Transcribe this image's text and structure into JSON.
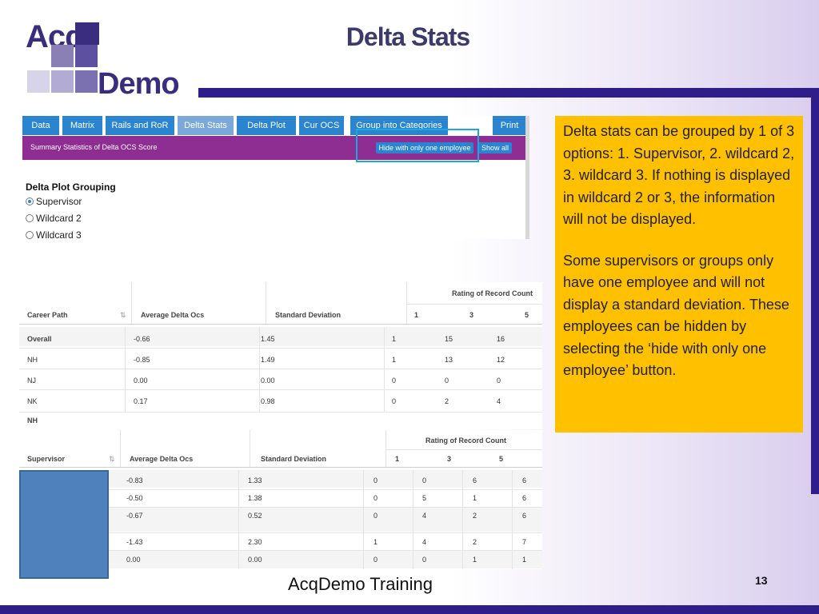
{
  "slide": {
    "title": "Delta Stats",
    "footer": "AcqDemo Training",
    "page_number": "13"
  },
  "logo": {
    "line1": "Acq",
    "line2": "Demo"
  },
  "app": {
    "tabs": [
      "Data",
      "Matrix",
      "Rails and RoR",
      "Delta Stats",
      "Delta Plot",
      "Cur OCS",
      "Group into Categories",
      "Print"
    ],
    "active_tab": "Delta Stats",
    "summary_label": "Summary Statistics of Delta OCS Score",
    "hide_button": "Hide with only one employee",
    "show_all_button": "Show all",
    "grouping_title": "Delta Plot Grouping",
    "grouping_options": [
      "Supervisor",
      "Wildcard 2",
      "Wildcard 3"
    ],
    "grouping_selected": "Supervisor"
  },
  "career_table": {
    "headers": [
      "Career Path",
      "Average Delta Ocs",
      "Standard Deviation"
    ],
    "ror_header": "Rating of Record Count",
    "ror_columns": [
      "1",
      "3",
      "5"
    ],
    "rows": [
      {
        "name": "Overall",
        "avg": "-0.66",
        "sd": "1.45",
        "c1": "1",
        "c2": "15",
        "c3": "16"
      },
      {
        "name": "NH",
        "avg": "-0.85",
        "sd": "1.49",
        "c1": "1",
        "c2": "13",
        "c3": "12"
      },
      {
        "name": "NJ",
        "avg": "0.00",
        "sd": "0.00",
        "c1": "0",
        "c2": "0",
        "c3": "0"
      },
      {
        "name": "NK",
        "avg": "0.17",
        "sd": "0.98",
        "c1": "0",
        "c2": "2",
        "c3": "4"
      }
    ],
    "trailing_label": "NH"
  },
  "supervisor_table": {
    "headers": [
      "Supervisor",
      "Average Delta Ocs",
      "Standard Deviation"
    ],
    "ror_header": "Rating of Record Count",
    "ror_columns": [
      "1",
      "3",
      "5"
    ],
    "rows": [
      {
        "avg": "-0.83",
        "sd": "1.33",
        "c1": "0",
        "c2": "0",
        "c3": "6",
        "c4": "6"
      },
      {
        "avg": "-0.50",
        "sd": "1.38",
        "c1": "0",
        "c2": "5",
        "c3": "1",
        "c4": "6"
      },
      {
        "avg": "-0.67",
        "sd": "0.52",
        "c1": "0",
        "c2": "4",
        "c3": "2",
        "c4": "6"
      },
      {
        "avg": "-1.43",
        "sd": "2.30",
        "c1": "1",
        "c2": "4",
        "c3": "2",
        "c4": "7"
      },
      {
        "avg": "0.00",
        "sd": "0.00",
        "c1": "0",
        "c2": "0",
        "c3": "1",
        "c4": "1"
      }
    ]
  },
  "note": {
    "paragraph1": "Delta stats can be grouped by 1 of 3 options: 1. Supervisor, 2. wildcard 2, 3. wildcard 3. If nothing is displayed in wildcard 2 or 3, the information will not be displayed.",
    "paragraph2": "Some supervisors or groups only have one employee and will not display a standard deviation. These employees can be hidden by selecting the ‘hide with only one employee’ button."
  },
  "colors": {
    "brand_purple": "#2f1d8a",
    "tab_blue": "#2a84cf",
    "header_magenta": "#8e2d92",
    "note_yellow": "#ffc000",
    "highlight_cyan": "#19a8e0",
    "redaction_blue": "#4f81bd"
  }
}
